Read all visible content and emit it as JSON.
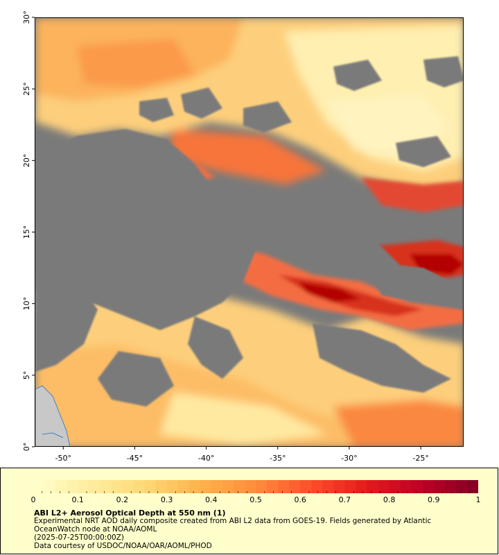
{
  "map": {
    "lon_ticks": [
      "-50°",
      "-45°",
      "-40°",
      "-35°",
      "-30°",
      "-25°"
    ],
    "lat_ticks": [
      "0°",
      "5°",
      "10°",
      "15°",
      "20°",
      "25°",
      "30°"
    ],
    "lon_range": [
      -52,
      -22
    ],
    "lat_range": [
      0,
      30
    ],
    "no_data_color": "#7a7a7a",
    "land_color": "#c8c8c8",
    "coastline_color": "#4a7fb5"
  },
  "legend": {
    "tick_labels": [
      "0",
      "0.1",
      "0.2",
      "0.3",
      "0.4",
      "0.5",
      "0.6",
      "0.7",
      "0.8",
      "0.9",
      "1"
    ],
    "range": [
      0,
      1
    ],
    "colors": [
      "#ffffcc",
      "#ffeda0",
      "#fed976",
      "#feb24c",
      "#fd8d3c",
      "#fc4e2a",
      "#e31a1c",
      "#bd0026",
      "#800026"
    ],
    "background_color": "#ffffcc",
    "title": "ABI L2+ Aerosol Optical Depth at 550 nm (1)",
    "line1": "Experimental NRT AOD daily composite created from ABI L2 data from GOES-19. Fields generated by Atlantic",
    "line2": "OceanWatch node at NOAA/AOML",
    "line3": "(2025-07-25T00:00:00Z)",
    "line4": "Data courtesy of USDOC/NOAA/OAR/AOML/PHOD"
  }
}
